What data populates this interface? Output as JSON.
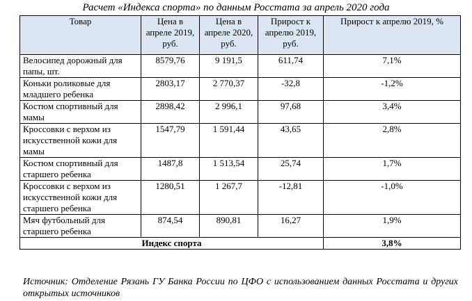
{
  "title": "Расчет «Индекса спорта» по данным Росстата за апрель 2020 года",
  "headers": {
    "product": "Товар",
    "price2019": "Цена в апреле 2019, руб.",
    "price2020": "Цена в апреле 2020, руб.",
    "increase": "Прирост к апрелю 2019, руб.",
    "increase_pct": "Прирост к апрелю 2019, %"
  },
  "rows": [
    {
      "product": "Велосипед дорожный для папы, шт.",
      "price2019": "8579,76",
      "price2020": "9 191,5",
      "increase": "611,74",
      "increase_pct": "7,1%"
    },
    {
      "product": "Коньки роликовые для младшего ребенка",
      "price2019": "2803,17",
      "price2020": "2 770,37",
      "increase": "-32,8",
      "increase_pct": "-1,2%"
    },
    {
      "product": "Костюм спортивный для мамы",
      "price2019": "2898,42",
      "price2020": "2 996,1",
      "increase": "97,68",
      "increase_pct": "3,4%"
    },
    {
      "product": "Кроссовки с верхом из искусственной кожи для мамы",
      "price2019": "1547,79",
      "price2020": "1 591,44",
      "increase": "43,65",
      "increase_pct": "2,8%"
    },
    {
      "product": "Костюм спортивный для старшего ребенка",
      "price2019": "1487,8",
      "price2020": "1 513,54",
      "increase": "25,74",
      "increase_pct": "1,7%"
    },
    {
      "product": "Кроссовки с верхом из искусственной кожи для старшего ребенка",
      "price2019": "1280,51",
      "price2020": "1 267,7",
      "increase": "-12,81",
      "increase_pct": "-1,0%"
    },
    {
      "product": "Мяч футбольный для старшего ребенка",
      "price2019": "874,54",
      "price2020": "890,81",
      "increase": "16,27",
      "increase_pct": "1,9%"
    }
  ],
  "total": {
    "label": "Индекс спорта",
    "value": "3,8%"
  },
  "source": "Источник: Отделение Рязань ГУ Банка России по ЦФО с использованием данных Росстата и других открытых источников",
  "colors": {
    "header_bg": "#dce6f2",
    "border": "#000000"
  }
}
